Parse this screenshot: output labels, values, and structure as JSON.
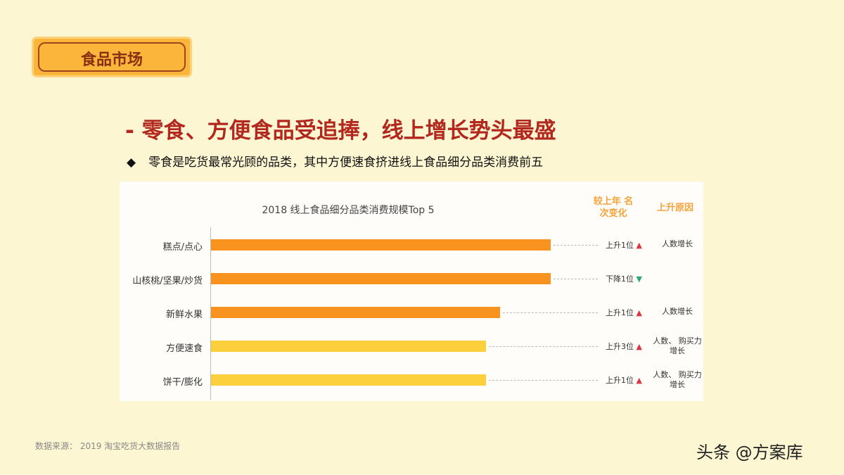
{
  "badge": "食品市场",
  "headline": "- 零食、方便食品受追捧，线上增长势头最盛",
  "bullet": "零食是吃货最常光顾的品类，其中方便速食挤进线上食品细分品类消费前五",
  "source": "数据来源： 2019 淘宝吃货大数据报告",
  "watermark": "头条 @方案库",
  "chart_data": {
    "type": "bar",
    "orientation": "horizontal",
    "title": "2018 线上食品细分品类消费规模Top 5",
    "rank_header": "较上年 名次变化",
    "reason_header": "上升原因",
    "categories": [
      "糕点/点心",
      "山核桃/坚果/炒货",
      "新鲜水果",
      "方便速食",
      "饼干/膨化"
    ],
    "values": [
      100,
      100,
      85,
      81,
      81
    ],
    "bar_colors": [
      "#f7931e",
      "#f7931e",
      "#f7931e",
      "#fccf3c",
      "#fccf3c"
    ],
    "rank_change": [
      "上升1位",
      "下降1位",
      "上升1位",
      "上升3位",
      "上升1位"
    ],
    "direction": [
      "up",
      "down",
      "up",
      "up",
      "up"
    ],
    "reasons": [
      "人数增长",
      "",
      "人数增长",
      "人数、 购买力增长",
      "人数、 购买力增长"
    ],
    "up_color": "#d9363e",
    "down_color": "#2aa775"
  }
}
